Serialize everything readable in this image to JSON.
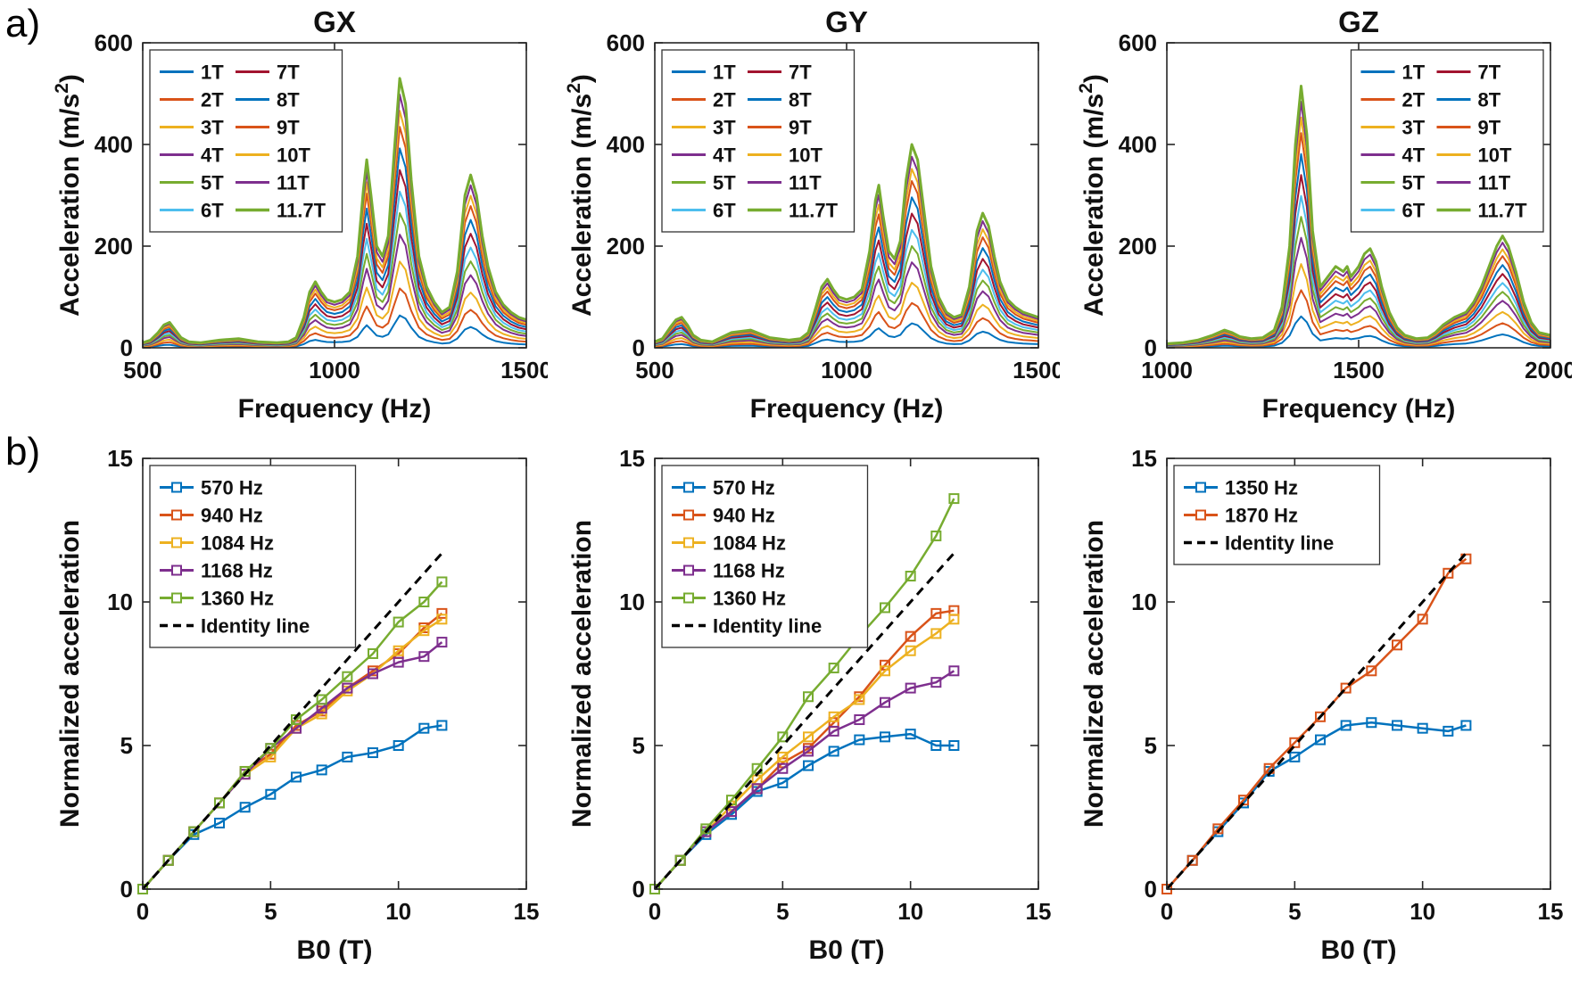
{
  "figure": {
    "panel_a_label": "a)",
    "panel_b_label": "b)"
  },
  "palette": {
    "blue": "#0072BD",
    "orange": "#D95319",
    "yellow": "#EDB120",
    "purple": "#7E2F8E",
    "green": "#77AC30",
    "cyan": "#4DBEEE",
    "darkred": "#A2142F",
    "identity": "#000000"
  },
  "chart_data": [
    {
      "type": "line",
      "id": "GX",
      "panel": "a",
      "title": "GX",
      "xlabel": "Frequency (Hz)",
      "ylabel": "Acceleration (m/s^2)",
      "xlim": [
        500,
        1500
      ],
      "xticks": [
        500,
        1000,
        1500
      ],
      "ylim": [
        0,
        600
      ],
      "yticks": [
        0,
        200,
        400,
        600
      ],
      "legend": {
        "position": "top-left",
        "columns": 2
      },
      "x": [
        500,
        520,
        540,
        555,
        570,
        585,
        600,
        620,
        650,
        700,
        750,
        800,
        850,
        880,
        900,
        920,
        935,
        950,
        965,
        980,
        1000,
        1020,
        1040,
        1060,
        1075,
        1084,
        1095,
        1110,
        1125,
        1140,
        1155,
        1170,
        1185,
        1200,
        1220,
        1240,
        1260,
        1280,
        1300,
        1320,
        1340,
        1355,
        1370,
        1385,
        1400,
        1420,
        1440,
        1460,
        1480,
        1500
      ],
      "base": [
        10,
        15,
        30,
        45,
        50,
        35,
        20,
        12,
        10,
        15,
        18,
        12,
        10,
        12,
        20,
        60,
        110,
        130,
        110,
        95,
        90,
        95,
        110,
        180,
        310,
        370,
        300,
        200,
        180,
        220,
        380,
        530,
        480,
        330,
        180,
        120,
        90,
        70,
        80,
        150,
        300,
        340,
        300,
        220,
        160,
        110,
        85,
        70,
        60,
        55
      ],
      "series": [
        {
          "name": "1T",
          "color": "#0072BD",
          "scale": 0.12
        },
        {
          "name": "2T",
          "color": "#D95319",
          "scale": 0.22
        },
        {
          "name": "3T",
          "color": "#EDB120",
          "scale": 0.32
        },
        {
          "name": "4T",
          "color": "#7E2F8E",
          "scale": 0.42
        },
        {
          "name": "5T",
          "color": "#77AC30",
          "scale": 0.5
        },
        {
          "name": "6T",
          "color": "#4DBEEE",
          "scale": 0.58
        },
        {
          "name": "7T",
          "color": "#A2142F",
          "scale": 0.66
        },
        {
          "name": "8T",
          "color": "#0072BD",
          "scale": 0.74
        },
        {
          "name": "9T",
          "color": "#D95319",
          "scale": 0.82
        },
        {
          "name": "10T",
          "color": "#EDB120",
          "scale": 0.88
        },
        {
          "name": "11T",
          "color": "#7E2F8E",
          "scale": 0.94
        },
        {
          "name": "11.7T",
          "color": "#77AC30",
          "scale": 1.0,
          "lw": 3
        }
      ]
    },
    {
      "type": "line",
      "id": "GY",
      "panel": "a",
      "title": "GY",
      "xlabel": "Frequency (Hz)",
      "ylabel": "Acceleration (m/s^2)",
      "xlim": [
        500,
        1500
      ],
      "xticks": [
        500,
        1000,
        1500
      ],
      "ylim": [
        0,
        600
      ],
      "yticks": [
        0,
        200,
        400,
        600
      ],
      "legend": {
        "position": "top-left",
        "columns": 2
      },
      "x": [
        500,
        520,
        540,
        555,
        570,
        585,
        600,
        620,
        650,
        700,
        750,
        800,
        850,
        880,
        900,
        920,
        935,
        950,
        965,
        980,
        1000,
        1020,
        1040,
        1060,
        1075,
        1084,
        1095,
        1110,
        1125,
        1140,
        1155,
        1170,
        1185,
        1200,
        1220,
        1240,
        1260,
        1280,
        1300,
        1320,
        1340,
        1355,
        1370,
        1385,
        1400,
        1420,
        1440,
        1460,
        1480,
        1500
      ],
      "base": [
        12,
        18,
        40,
        55,
        60,
        45,
        25,
        15,
        12,
        30,
        35,
        20,
        15,
        18,
        30,
        80,
        120,
        135,
        115,
        100,
        95,
        100,
        115,
        190,
        290,
        320,
        260,
        190,
        175,
        210,
        330,
        400,
        370,
        280,
        160,
        100,
        70,
        60,
        65,
        120,
        230,
        265,
        240,
        180,
        130,
        95,
        80,
        70,
        65,
        60
      ],
      "series": [
        {
          "name": "1T",
          "color": "#0072BD",
          "scale": 0.12
        },
        {
          "name": "2T",
          "color": "#D95319",
          "scale": 0.22
        },
        {
          "name": "3T",
          "color": "#EDB120",
          "scale": 0.32
        },
        {
          "name": "4T",
          "color": "#7E2F8E",
          "scale": 0.42
        },
        {
          "name": "5T",
          "color": "#77AC30",
          "scale": 0.5
        },
        {
          "name": "6T",
          "color": "#4DBEEE",
          "scale": 0.58
        },
        {
          "name": "7T",
          "color": "#A2142F",
          "scale": 0.66
        },
        {
          "name": "8T",
          "color": "#0072BD",
          "scale": 0.74
        },
        {
          "name": "9T",
          "color": "#D95319",
          "scale": 0.82
        },
        {
          "name": "10T",
          "color": "#EDB120",
          "scale": 0.88
        },
        {
          "name": "11T",
          "color": "#7E2F8E",
          "scale": 0.94
        },
        {
          "name": "11.7T",
          "color": "#77AC30",
          "scale": 1.0,
          "lw": 3
        }
      ]
    },
    {
      "type": "line",
      "id": "GZ",
      "panel": "a",
      "title": "GZ",
      "xlabel": "Frequency (Hz)",
      "ylabel": "Acceleration (m/s^2)",
      "xlim": [
        1000,
        2000
      ],
      "xticks": [
        1000,
        1500,
        2000
      ],
      "ylim": [
        0,
        600
      ],
      "yticks": [
        0,
        200,
        400,
        600
      ],
      "legend": {
        "position": "top-right",
        "columns": 2
      },
      "x": [
        1000,
        1040,
        1080,
        1120,
        1150,
        1170,
        1190,
        1220,
        1250,
        1280,
        1300,
        1320,
        1335,
        1350,
        1365,
        1380,
        1400,
        1420,
        1440,
        1460,
        1470,
        1480,
        1500,
        1515,
        1530,
        1545,
        1560,
        1580,
        1600,
        1620,
        1650,
        1680,
        1700,
        1720,
        1750,
        1780,
        1800,
        1820,
        1840,
        1860,
        1875,
        1890,
        1910,
        1930,
        1950,
        1970,
        2000
      ],
      "base": [
        8,
        10,
        15,
        25,
        35,
        30,
        22,
        18,
        20,
        35,
        80,
        200,
        400,
        515,
        420,
        230,
        120,
        140,
        160,
        150,
        160,
        140,
        160,
        185,
        195,
        170,
        120,
        70,
        40,
        25,
        18,
        20,
        30,
        45,
        60,
        70,
        90,
        120,
        160,
        200,
        220,
        200,
        150,
        90,
        50,
        30,
        25
      ],
      "series": [
        {
          "name": "1T",
          "color": "#0072BD",
          "scale": 0.12
        },
        {
          "name": "2T",
          "color": "#D95319",
          "scale": 0.22
        },
        {
          "name": "3T",
          "color": "#EDB120",
          "scale": 0.32
        },
        {
          "name": "4T",
          "color": "#7E2F8E",
          "scale": 0.42
        },
        {
          "name": "5T",
          "color": "#77AC30",
          "scale": 0.5
        },
        {
          "name": "6T",
          "color": "#4DBEEE",
          "scale": 0.58
        },
        {
          "name": "7T",
          "color": "#A2142F",
          "scale": 0.66
        },
        {
          "name": "8T",
          "color": "#0072BD",
          "scale": 0.74
        },
        {
          "name": "9T",
          "color": "#D95319",
          "scale": 0.82
        },
        {
          "name": "10T",
          "color": "#EDB120",
          "scale": 0.88
        },
        {
          "name": "11T",
          "color": "#7E2F8E",
          "scale": 0.94
        },
        {
          "name": "11.7T",
          "color": "#77AC30",
          "scale": 1.0,
          "lw": 3
        }
      ]
    },
    {
      "type": "line",
      "id": "GX-normalized",
      "panel": "b",
      "title": "",
      "xlabel": "B0 (T)",
      "ylabel": "Normalized acceleration",
      "xlim": [
        0,
        15
      ],
      "xticks": [
        0,
        5,
        10,
        15
      ],
      "ylim": [
        0,
        15
      ],
      "yticks": [
        0,
        5,
        10,
        15
      ],
      "legend": {
        "position": "top-left",
        "columns": 1
      },
      "x": [
        0,
        1,
        2,
        3,
        4,
        5,
        6,
        7,
        8,
        9,
        10,
        11,
        11.7
      ],
      "series": [
        {
          "name": "570 Hz",
          "color": "#0072BD",
          "marker": "square",
          "lw": 2.5,
          "values": [
            0,
            1,
            1.9,
            2.3,
            2.85,
            3.3,
            3.9,
            4.15,
            4.6,
            4.75,
            5,
            5.6,
            5.7
          ]
        },
        {
          "name": "940 Hz",
          "color": "#D95319",
          "marker": "square",
          "lw": 2.5,
          "values": [
            0,
            1,
            2,
            3,
            4.1,
            4.7,
            5.7,
            6.2,
            7,
            7.6,
            8.2,
            9.1,
            9.6
          ]
        },
        {
          "name": "1084 Hz",
          "color": "#EDB120",
          "marker": "square",
          "lw": 2.5,
          "values": [
            0,
            1,
            2,
            3,
            4,
            4.6,
            5.6,
            6.1,
            6.9,
            7.5,
            8.3,
            9,
            9.4
          ]
        },
        {
          "name": "1168 Hz",
          "color": "#7E2F8E",
          "marker": "square",
          "lw": 2.5,
          "values": [
            0,
            1,
            2,
            3,
            4,
            4.9,
            5.6,
            6.3,
            7,
            7.5,
            7.9,
            8.1,
            8.6
          ]
        },
        {
          "name": "1360 Hz",
          "color": "#77AC30",
          "marker": "square",
          "lw": 2.5,
          "values": [
            0,
            1,
            2,
            3,
            4.1,
            4.9,
            5.9,
            6.6,
            7.4,
            8.2,
            9.3,
            10,
            10.7
          ]
        },
        {
          "name": "Identity line",
          "color": "#000000",
          "dash": true,
          "lw": 3,
          "x": [
            0,
            11.7
          ],
          "values": [
            0,
            11.7
          ]
        }
      ]
    },
    {
      "type": "line",
      "id": "GY-normalized",
      "panel": "b",
      "title": "",
      "xlabel": "B0 (T)",
      "ylabel": "Normalized acceleration",
      "xlim": [
        0,
        15
      ],
      "xticks": [
        0,
        5,
        10,
        15
      ],
      "ylim": [
        0,
        15
      ],
      "yticks": [
        0,
        5,
        10,
        15
      ],
      "legend": {
        "position": "top-left",
        "columns": 1
      },
      "x": [
        0,
        1,
        2,
        3,
        4,
        5,
        6,
        7,
        8,
        9,
        10,
        11,
        11.7
      ],
      "series": [
        {
          "name": "570 Hz",
          "color": "#0072BD",
          "marker": "square",
          "lw": 2.5,
          "values": [
            0,
            1,
            1.9,
            2.6,
            3.4,
            3.7,
            4.3,
            4.8,
            5.2,
            5.3,
            5.4,
            5,
            5
          ]
        },
        {
          "name": "940 Hz",
          "color": "#D95319",
          "marker": "square",
          "lw": 2.5,
          "values": [
            0,
            1,
            2,
            2.7,
            3.5,
            4.4,
            4.9,
            5.8,
            6.7,
            7.8,
            8.8,
            9.6,
            9.7
          ]
        },
        {
          "name": "1084 Hz",
          "color": "#EDB120",
          "marker": "square",
          "lw": 2.5,
          "values": [
            0,
            1,
            2,
            2.9,
            3.8,
            4.6,
            5.3,
            6,
            6.6,
            7.6,
            8.3,
            8.9,
            9.4
          ]
        },
        {
          "name": "1168 Hz",
          "color": "#7E2F8E",
          "marker": "square",
          "lw": 2.5,
          "values": [
            0,
            1,
            2,
            2.7,
            3.5,
            4.2,
            4.8,
            5.5,
            5.9,
            6.5,
            7,
            7.2,
            7.6
          ]
        },
        {
          "name": "1360 Hz",
          "color": "#77AC30",
          "marker": "square",
          "lw": 2.5,
          "values": [
            0,
            1,
            2.1,
            3.1,
            4.2,
            5.3,
            6.7,
            7.7,
            8.8,
            9.8,
            10.9,
            12.3,
            13.6
          ]
        },
        {
          "name": "Identity line",
          "color": "#000000",
          "dash": true,
          "lw": 3,
          "x": [
            0,
            11.7
          ],
          "values": [
            0,
            11.7
          ]
        }
      ]
    },
    {
      "type": "line",
      "id": "GZ-normalized",
      "panel": "b",
      "title": "",
      "xlabel": "B0 (T)",
      "ylabel": "Normalized acceleration",
      "xlim": [
        0,
        15
      ],
      "xticks": [
        0,
        5,
        10,
        15
      ],
      "ylim": [
        0,
        15
      ],
      "yticks": [
        0,
        5,
        10,
        15
      ],
      "legend": {
        "position": "top-left",
        "columns": 1
      },
      "x": [
        0,
        1,
        2,
        3,
        4,
        5,
        6,
        7,
        8,
        9,
        10,
        11,
        11.7
      ],
      "series": [
        {
          "name": "1350 Hz",
          "color": "#0072BD",
          "marker": "square",
          "lw": 2.5,
          "values": [
            0,
            1,
            2,
            3,
            4.1,
            4.6,
            5.2,
            5.7,
            5.8,
            5.7,
            5.6,
            5.5,
            5.7
          ]
        },
        {
          "name": "1870 Hz",
          "color": "#D95319",
          "marker": "square",
          "lw": 2.5,
          "values": [
            0,
            1,
            2.1,
            3.1,
            4.2,
            5.1,
            6,
            7,
            7.6,
            8.5,
            9.4,
            11,
            11.5
          ]
        },
        {
          "name": "Identity line",
          "color": "#000000",
          "dash": true,
          "lw": 3,
          "x": [
            0,
            11.7
          ],
          "values": [
            0,
            11.7
          ]
        }
      ]
    }
  ]
}
